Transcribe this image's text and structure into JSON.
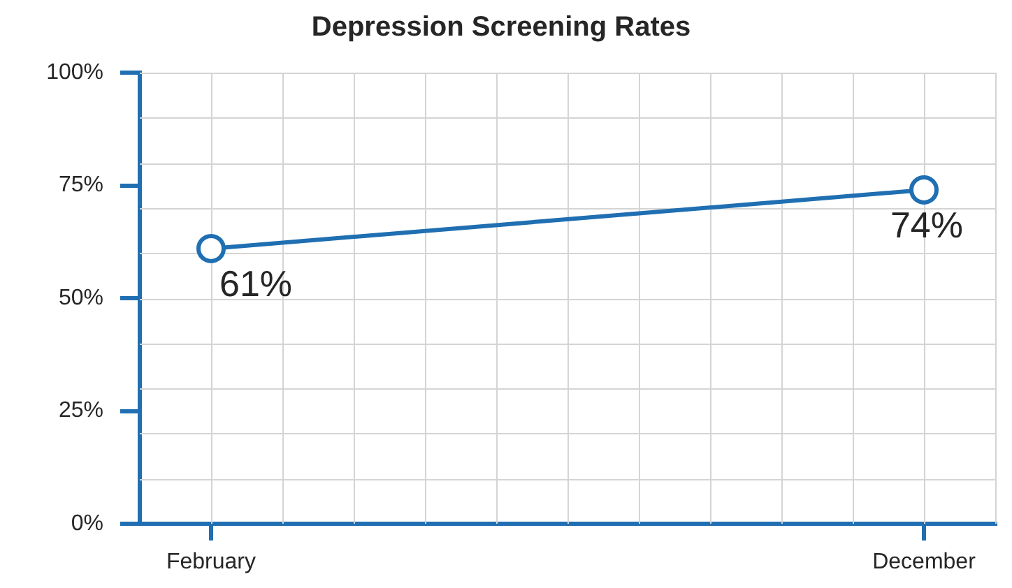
{
  "chart_data": {
    "type": "line",
    "title": "Depression Screening Rates",
    "categories": [
      null,
      "February",
      null,
      null,
      null,
      null,
      null,
      null,
      null,
      null,
      null,
      "December",
      null
    ],
    "ylim": [
      0,
      100
    ],
    "yticks": [
      {
        "value": 0,
        "label": "0%"
      },
      {
        "value": 25,
        "label": "25%"
      },
      {
        "value": 50,
        "label": "50%"
      },
      {
        "value": 75,
        "label": "75%"
      },
      {
        "value": 100,
        "label": "100%"
      }
    ],
    "series": [
      {
        "color": "#1f6fb2",
        "values": [
          null,
          61,
          null,
          null,
          null,
          null,
          null,
          null,
          null,
          null,
          null,
          74,
          null
        ],
        "value_labels": [
          null,
          "61%",
          null,
          null,
          null,
          null,
          null,
          null,
          null,
          null,
          null,
          "74%",
          null
        ]
      }
    ],
    "grid": true,
    "marker": "circle",
    "line_style": "solid",
    "legend": false
  }
}
